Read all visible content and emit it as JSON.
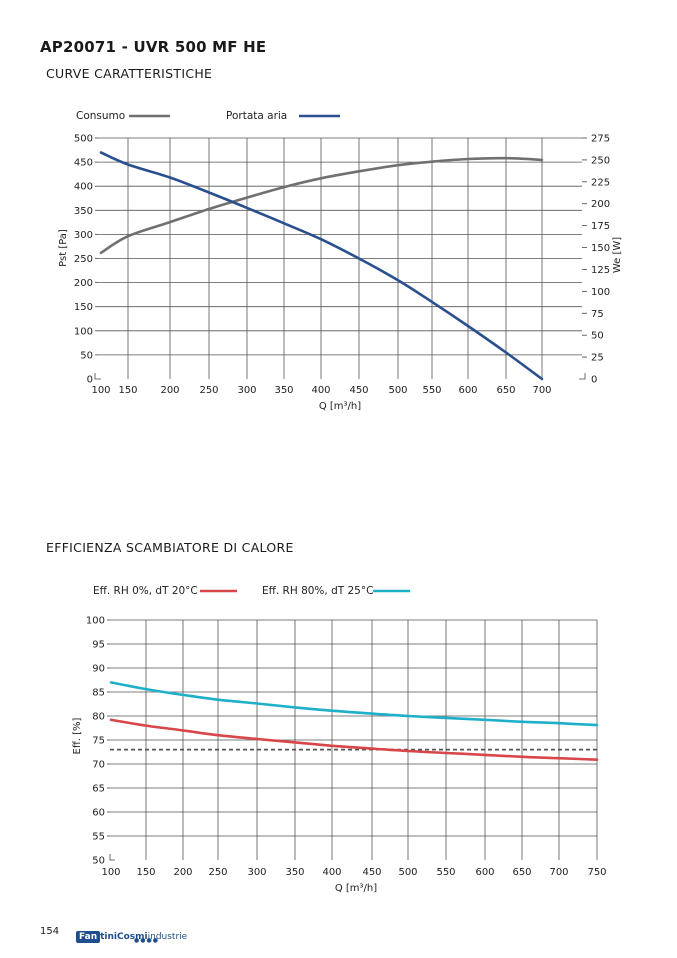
{
  "header": {
    "title": "AP20071 - UVR 500 MF HE",
    "section1": "CURVE CARATTERISTICHE",
    "section2": "EFFICIENZA SCAMBIATORE DI CALORE"
  },
  "footer": {
    "page_number": "154",
    "logo_box": "Fan",
    "logo_text": "tiniCosmi",
    "logo_text2": "industrie",
    "logo_dots": "●●●●"
  },
  "colors": {
    "consumo": "#707070",
    "portata": "#2a4f8f",
    "eff_rh0": "#d9464a",
    "eff_rh80": "#1eb0c8",
    "reference": "#555555",
    "grid": "#333333"
  },
  "chart_data": [
    {
      "type": "line",
      "xlabel": "Q [m³/h]",
      "ylabel": "Pst [Pa]",
      "y2label": "We [W]",
      "xlim": [
        100,
        725
      ],
      "ylim": [
        0,
        500
      ],
      "y2lim": [
        0,
        275
      ],
      "x_ticks": [
        100,
        150,
        200,
        250,
        300,
        350,
        400,
        450,
        500,
        550,
        600,
        650,
        700
      ],
      "y_ticks": [
        0,
        50,
        100,
        150,
        200,
        250,
        300,
        350,
        400,
        450,
        500
      ],
      "y2_ticks": [
        0,
        25,
        50,
        75,
        100,
        125,
        150,
        175,
        200,
        225,
        250,
        275
      ],
      "grid": true,
      "legend_position": "top",
      "series": [
        {
          "name": "Consumo",
          "axis": "right",
          "x": [
            100,
            150,
            200,
            250,
            300,
            350,
            400,
            450,
            500,
            550,
            600,
            650,
            700
          ],
          "y": [
            144,
            163,
            179,
            194,
            207,
            219,
            229,
            237,
            244,
            248,
            251,
            252,
            250
          ]
        },
        {
          "name": "Portata aria",
          "axis": "left",
          "x": [
            100,
            150,
            200,
            250,
            300,
            350,
            400,
            450,
            500,
            550,
            600,
            650,
            700
          ],
          "y": [
            470,
            445,
            418,
            387,
            355,
            323,
            290,
            250,
            205,
            160,
            110,
            55,
            0
          ]
        }
      ]
    },
    {
      "type": "line",
      "xlabel": "Q [m³/h]",
      "ylabel": "Eff. [%]",
      "xlim": [
        100,
        750
      ],
      "ylim": [
        50,
        100
      ],
      "x_ticks": [
        100,
        150,
        200,
        250,
        300,
        350,
        400,
        450,
        500,
        550,
        600,
        650,
        700,
        750
      ],
      "y_ticks": [
        50,
        55,
        60,
        65,
        70,
        75,
        80,
        85,
        90,
        95,
        100
      ],
      "grid": true,
      "legend_position": "top",
      "reference_line": 73,
      "series": [
        {
          "name": "Eff. RH 0%, dT 20°C",
          "x": [
            100,
            150,
            200,
            250,
            300,
            350,
            400,
            450,
            500,
            550,
            600,
            650,
            700,
            750
          ],
          "y": [
            79.2,
            78.0,
            77.0,
            76.0,
            75.2,
            74.5,
            73.8,
            73.2,
            72.7,
            72.3,
            71.9,
            71.5,
            71.2,
            70.9
          ]
        },
        {
          "name": "Eff. RH 80%, dT 25°C",
          "x": [
            100,
            150,
            200,
            250,
            300,
            350,
            400,
            450,
            500,
            550,
            600,
            650,
            700,
            750
          ],
          "y": [
            87.0,
            85.6,
            84.4,
            83.4,
            82.6,
            81.8,
            81.1,
            80.5,
            80.0,
            79.6,
            79.2,
            78.8,
            78.5,
            78.1
          ]
        }
      ]
    }
  ]
}
